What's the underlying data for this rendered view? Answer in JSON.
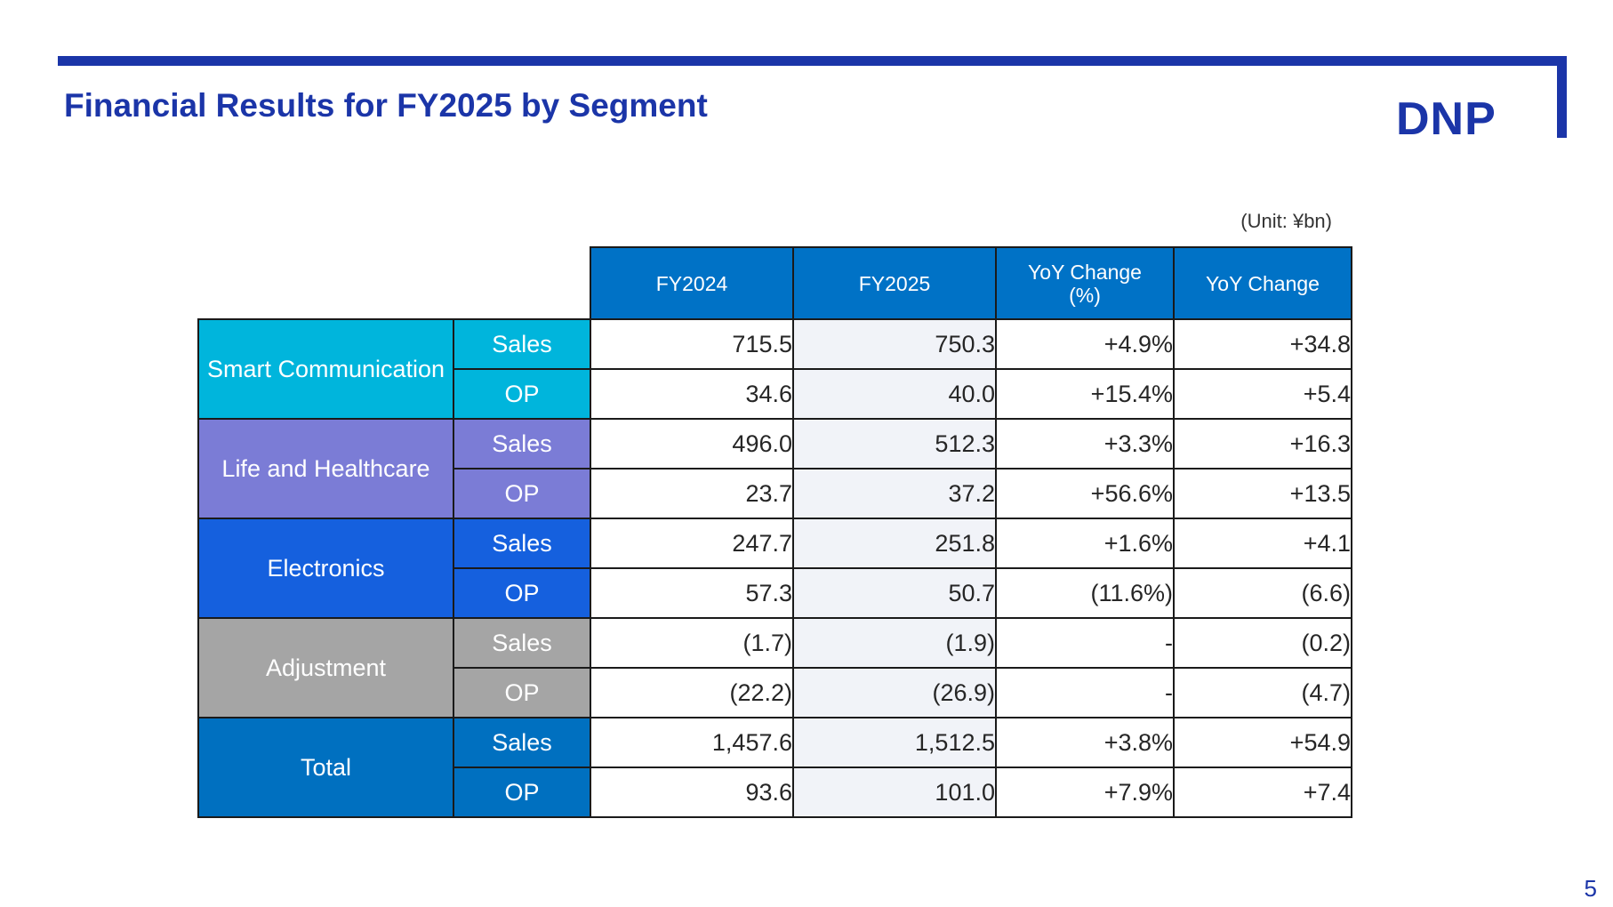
{
  "slide": {
    "title": "Financial Results for FY2025 by Segment",
    "logo_text": "DNP",
    "unit": "(Unit: ¥bn)",
    "page_number": "5",
    "brand_color": "#1B35A8"
  },
  "table": {
    "headers": [
      "FY2024",
      "FY2025",
      "YoY Change\n(%)",
      "YoY Change"
    ],
    "segments": [
      {
        "name": "Smart Communication",
        "color": "#00B5DC",
        "rows": [
          {
            "metric": "Sales",
            "fy2024": "715.5",
            "fy2025": "750.3",
            "yoy_pct": "+4.9%",
            "yoy": "+34.8"
          },
          {
            "metric": "OP",
            "fy2024": "34.6",
            "fy2025": "40.0",
            "yoy_pct": "+15.4%",
            "yoy": "+5.4"
          }
        ]
      },
      {
        "name": "Life and Healthcare",
        "color": "#7B7CD6",
        "rows": [
          {
            "metric": "Sales",
            "fy2024": "496.0",
            "fy2025": "512.3",
            "yoy_pct": "+3.3%",
            "yoy": "+16.3"
          },
          {
            "metric": "OP",
            "fy2024": "23.7",
            "fy2025": "37.2",
            "yoy_pct": "+56.6%",
            "yoy": "+13.5"
          }
        ]
      },
      {
        "name": "Electronics",
        "color": "#1560DE",
        "rows": [
          {
            "metric": "Sales",
            "fy2024": "247.7",
            "fy2025": "251.8",
            "yoy_pct": "+1.6%",
            "yoy": "+4.1"
          },
          {
            "metric": "OP",
            "fy2024": "57.3",
            "fy2025": "50.7",
            "yoy_pct": "(11.6%)",
            "yoy": "(6.6)"
          }
        ]
      },
      {
        "name": "Adjustment",
        "color": "#A5A5A5",
        "rows": [
          {
            "metric": "Sales",
            "fy2024": "(1.7)",
            "fy2025": "(1.9)",
            "yoy_pct": "-",
            "yoy": "(0.2)"
          },
          {
            "metric": "OP",
            "fy2024": "(22.2)",
            "fy2025": "(26.9)",
            "yoy_pct": "-",
            "yoy": "(4.7)"
          }
        ]
      },
      {
        "name": "Total",
        "color": "#0070C0",
        "rows": [
          {
            "metric": "Sales",
            "fy2024": "1,457.6",
            "fy2025": "1,512.5",
            "yoy_pct": "+3.8%",
            "yoy": "+54.9"
          },
          {
            "metric": "OP",
            "fy2024": "93.6",
            "fy2025": "101.0",
            "yoy_pct": "+7.9%",
            "yoy": "+7.4"
          }
        ]
      }
    ]
  }
}
